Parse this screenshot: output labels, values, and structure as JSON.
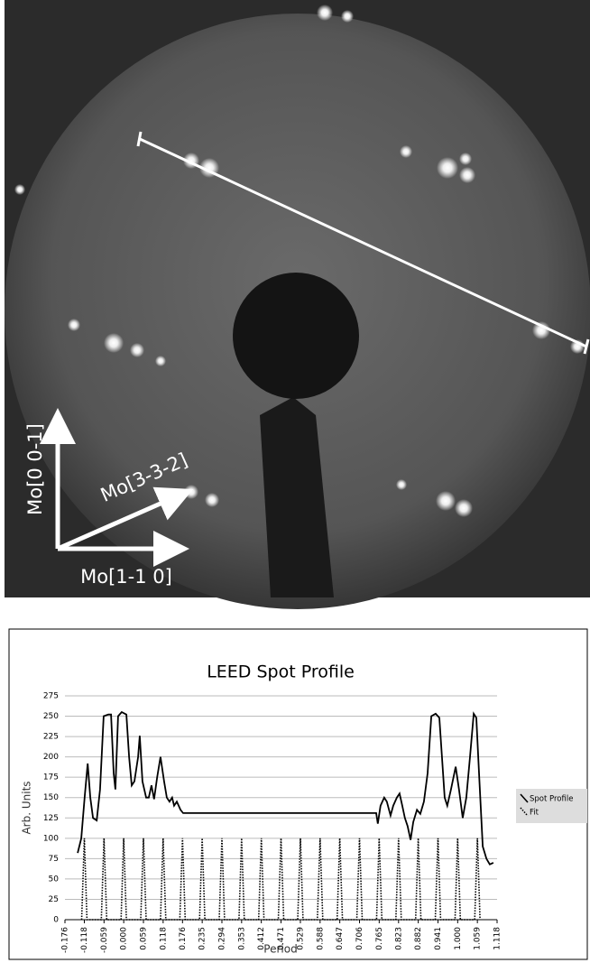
{
  "image": {
    "labels": [
      "Mo[0 0-1]",
      "Mo[3-3-2]",
      "Mo[1-1 0]"
    ]
  },
  "chart_data": {
    "type": "line",
    "title": "LEED Spot Profile",
    "x_label": "Period",
    "y_label": "Arb. Units",
    "xlim": [
      -0.176,
      1.118
    ],
    "xticks": [
      -0.176,
      -0.118,
      -0.059,
      {
        "value": 0,
        "label": "0.000"
      },
      0.059,
      0.118,
      0.176,
      0.235,
      0.294,
      0.353,
      0.412,
      0.471,
      0.529,
      0.588,
      0.647,
      0.706,
      0.765,
      0.823,
      0.882,
      0.941,
      {
        "value": 1,
        "label": "1.000"
      },
      1.059,
      1.118
    ],
    "ylim": [
      0,
      275
    ],
    "yticks": [
      0,
      25,
      50,
      75,
      100,
      125,
      150,
      175,
      200,
      225,
      250,
      275
    ],
    "grid": true,
    "legend": "right",
    "series": [
      {
        "name": "Spot Profile",
        "color": "#000000",
        "style": "solid",
        "x": [
          -0.138,
          -0.127,
          -0.117,
          -0.108,
          -0.1,
          -0.092,
          -0.081,
          -0.071,
          -0.06,
          -0.046,
          -0.038,
          -0.03,
          -0.025,
          -0.017,
          -0.006,
          0.008,
          0.016,
          0.024,
          0.032,
          0.043,
          0.048,
          0.056,
          0.067,
          0.075,
          0.083,
          0.091,
          0.1,
          0.11,
          0.121,
          0.129,
          0.137,
          0.145,
          0.151,
          0.159,
          0.17,
          0.178,
          0.756,
          0.761,
          0.769,
          0.78,
          0.788,
          0.799,
          0.807,
          0.818,
          0.826,
          0.834,
          0.842,
          0.85,
          0.859,
          0.867,
          0.878,
          0.888,
          0.899,
          0.91,
          0.921,
          0.934,
          0.945,
          0.953,
          0.961,
          0.969,
          0.98,
          0.994,
          1.004,
          1.015,
          1.026,
          1.037,
          1.048,
          1.056,
          1.064,
          1.075,
          1.086,
          1.096,
          1.107
        ],
        "values": [
          82,
          100,
          150,
          192,
          150,
          125,
          122,
          160,
          250,
          252,
          252,
          180,
          160,
          250,
          255,
          252,
          200,
          165,
          170,
          200,
          226,
          170,
          150,
          150,
          165,
          148,
          175,
          200,
          170,
          150,
          145,
          150,
          140,
          145,
          135,
          131,
          131,
          118,
          140,
          150,
          145,
          128,
          140,
          150,
          155,
          140,
          125,
          115,
          98,
          120,
          135,
          130,
          145,
          180,
          250,
          253,
          248,
          200,
          150,
          140,
          160,
          188,
          160,
          125,
          150,
          200,
          253,
          248,
          180,
          90,
          75,
          68,
          70
        ]
      },
      {
        "name": "Fit",
        "color": "#000000",
        "style": "dotted",
        "x": [
          -0.126,
          -0.118,
          -0.11,
          -0.067,
          -0.059,
          -0.051,
          -0.008,
          0,
          0.008,
          0.051,
          0.059,
          0.067,
          0.11,
          0.118,
          0.126,
          0.168,
          0.176,
          0.184,
          0.227,
          0.235,
          0.243,
          0.286,
          0.294,
          0.302,
          0.345,
          0.353,
          0.361,
          0.404,
          0.412,
          0.42,
          0.463,
          0.471,
          0.479,
          0.521,
          0.529,
          0.537,
          0.58,
          0.588,
          0.596,
          0.639,
          0.647,
          0.655,
          0.698,
          0.706,
          0.714,
          0.757,
          0.765,
          0.773,
          0.815,
          0.823,
          0.831,
          0.874,
          0.882,
          0.89,
          0.933,
          0.941,
          0.949,
          0.992,
          1,
          1.008,
          1.051,
          1.059,
          1.067
        ],
        "values": [
          0,
          100,
          0,
          0,
          100,
          0,
          0,
          100,
          0,
          0,
          100,
          0,
          0,
          100,
          0,
          0,
          100,
          0,
          0,
          100,
          0,
          0,
          100,
          0,
          0,
          100,
          0,
          0,
          100,
          0,
          0,
          100,
          0,
          0,
          100,
          0,
          0,
          100,
          0,
          0,
          100,
          0,
          0,
          100,
          0,
          0,
          100,
          0,
          0,
          100,
          0,
          0,
          100,
          0,
          0,
          100,
          0,
          0,
          100,
          0,
          0,
          100,
          0
        ]
      }
    ]
  }
}
